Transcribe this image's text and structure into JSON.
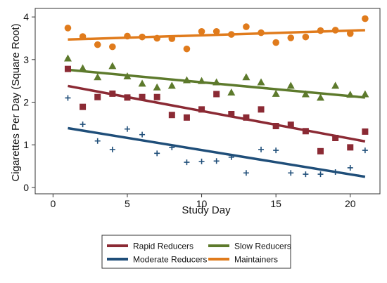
{
  "chart_data": {
    "type": "scatter",
    "xlabel": "Study Day",
    "ylabel": "Cigarettes Per Day (Square Root)",
    "xlim": [
      -1.2,
      22
    ],
    "ylim": [
      -0.15,
      4.2
    ],
    "xticks": [
      0,
      5,
      10,
      15,
      20
    ],
    "yticks": [
      0,
      1,
      2,
      3,
      4
    ],
    "xtick_labels": [
      "0",
      "5",
      "10",
      "15",
      "20"
    ],
    "ytick_labels": [
      "0",
      "1",
      "2",
      "3",
      "4"
    ],
    "grid": false,
    "legend_position": "bottom",
    "series": [
      {
        "name": "Rapid Reducers",
        "color": "#8b2a34",
        "marker": "square",
        "x": [
          1,
          2,
          3,
          4,
          5,
          6,
          7,
          8,
          9,
          10,
          11,
          12,
          13,
          14,
          15,
          16,
          17,
          18,
          19,
          20,
          21
        ],
        "points": [
          2.78,
          1.89,
          2.12,
          2.2,
          2.11,
          2.12,
          2.12,
          1.7,
          1.64,
          1.83,
          2.19,
          1.72,
          1.64,
          1.83,
          1.44,
          1.47,
          1.32,
          0.85,
          1.16,
          0.94,
          1.31
        ],
        "fit": [
          2.38,
          1.08
        ]
      },
      {
        "name": "Slow Reducers",
        "color": "#5d7a2c",
        "marker": "triangle",
        "x": [
          1,
          2,
          3,
          4,
          5,
          6,
          7,
          8,
          9,
          10,
          11,
          12,
          13,
          14,
          15,
          16,
          17,
          18,
          19,
          20,
          21
        ],
        "points": [
          3.03,
          2.8,
          2.59,
          2.85,
          2.61,
          2.44,
          2.35,
          2.39,
          2.52,
          2.5,
          2.47,
          2.23,
          2.59,
          2.47,
          2.2,
          2.39,
          2.19,
          2.11,
          2.39,
          2.18,
          2.19
        ],
        "fit": [
          2.76,
          2.11
        ]
      },
      {
        "name": "Moderate Reducers",
        "color": "#1f4e79",
        "marker": "plus",
        "x": [
          1,
          2,
          3,
          4,
          5,
          6,
          7,
          8,
          9,
          10,
          11,
          12,
          13,
          14,
          15,
          16,
          17,
          18,
          19,
          20,
          21
        ],
        "points": [
          2.1,
          1.48,
          1.09,
          0.89,
          1.37,
          1.24,
          0.8,
          0.94,
          0.59,
          0.61,
          0.62,
          0.71,
          0.34,
          0.89,
          0.87,
          0.34,
          0.31,
          0.31,
          0.36,
          0.46,
          0.87
        ],
        "fit": [
          1.39,
          0.25
        ]
      },
      {
        "name": "Maintainers",
        "color": "#e07b1c",
        "marker": "circle",
        "x": [
          1,
          2,
          3,
          4,
          5,
          6,
          7,
          8,
          9,
          10,
          11,
          12,
          13,
          14,
          15,
          16,
          17,
          18,
          19,
          20,
          21
        ],
        "points": [
          3.74,
          3.54,
          3.35,
          3.3,
          3.55,
          3.53,
          3.5,
          3.49,
          3.25,
          3.66,
          3.66,
          3.59,
          3.77,
          3.63,
          3.4,
          3.51,
          3.53,
          3.68,
          3.69,
          3.61,
          3.96
        ],
        "fit": [
          3.47,
          3.69
        ]
      }
    ]
  }
}
